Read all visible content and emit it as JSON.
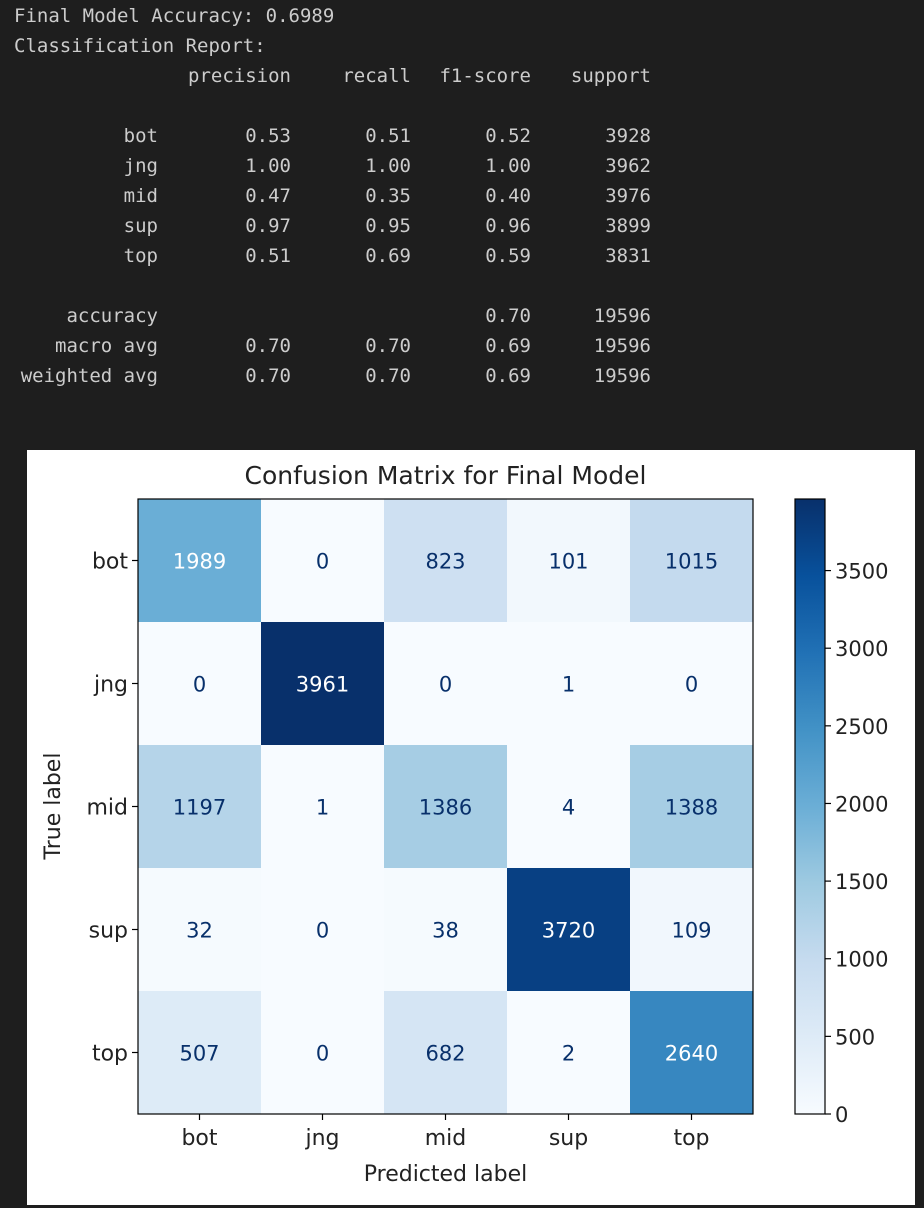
{
  "output": {
    "accuracy_line": "Final Model Accuracy: 0.6989",
    "report_heading": "Classification Report:",
    "columns": [
      "precision",
      "recall",
      "f1-score",
      "support"
    ],
    "rows": [
      {
        "label": "bot",
        "precision": "0.53",
        "recall": "0.51",
        "f1": "0.52",
        "support": "3928"
      },
      {
        "label": "jng",
        "precision": "1.00",
        "recall": "1.00",
        "f1": "1.00",
        "support": "3962"
      },
      {
        "label": "mid",
        "precision": "0.47",
        "recall": "0.35",
        "f1": "0.40",
        "support": "3976"
      },
      {
        "label": "sup",
        "precision": "0.97",
        "recall": "0.95",
        "f1": "0.96",
        "support": "3899"
      },
      {
        "label": "top",
        "precision": "0.51",
        "recall": "0.69",
        "f1": "0.59",
        "support": "3831"
      }
    ],
    "summary_rows": [
      {
        "label": "accuracy",
        "precision": "",
        "recall": "",
        "f1": "0.70",
        "support": "19596"
      },
      {
        "label": "macro avg",
        "precision": "0.70",
        "recall": "0.70",
        "f1": "0.69",
        "support": "19596"
      },
      {
        "label": "weighted avg",
        "precision": "0.70",
        "recall": "0.70",
        "f1": "0.69",
        "support": "19596"
      }
    ]
  },
  "chart_data": {
    "type": "heatmap",
    "title": "Confusion Matrix for Final Model",
    "xlabel": "Predicted label",
    "ylabel": "True label",
    "x_categories": [
      "bot",
      "jng",
      "mid",
      "sup",
      "top"
    ],
    "y_categories": [
      "bot",
      "jng",
      "mid",
      "sup",
      "top"
    ],
    "values": [
      [
        1989,
        0,
        823,
        101,
        1015
      ],
      [
        0,
        3961,
        0,
        1,
        0
      ],
      [
        1197,
        1,
        1386,
        4,
        1388
      ],
      [
        32,
        0,
        38,
        3720,
        109
      ],
      [
        507,
        0,
        682,
        2,
        2640
      ]
    ],
    "colormap": "Blues",
    "colorbar": {
      "min": 0,
      "max": 3961,
      "ticks": [
        0,
        500,
        1000,
        1500,
        2000,
        2500,
        3000,
        3500
      ]
    },
    "grid": false
  },
  "colors": {
    "background": "#1e1e1e",
    "output_text": "#cccccc",
    "figure_background": "#ffffff",
    "axis_color": "#000000"
  }
}
